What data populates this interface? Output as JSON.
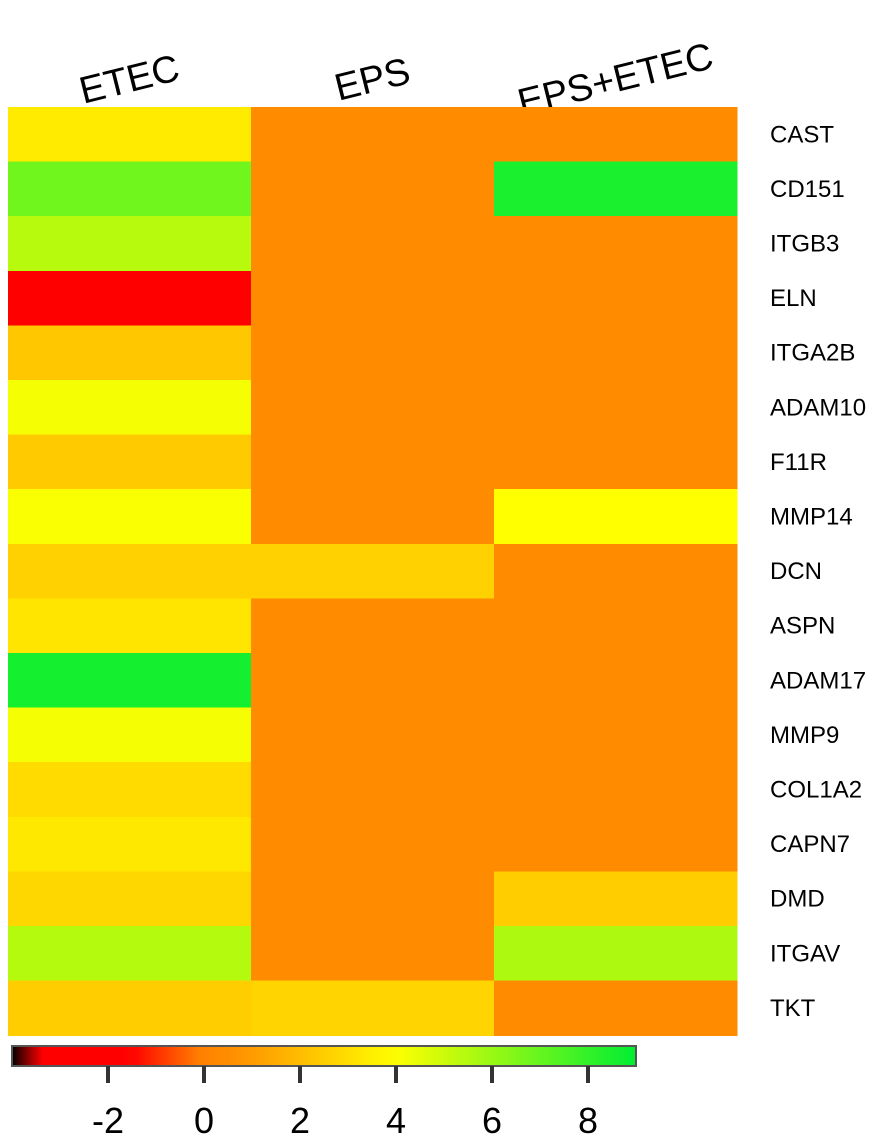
{
  "chart_data": {
    "type": "heatmap",
    "columns": [
      "ETEC",
      "EPS",
      "EPS+ETEC"
    ],
    "rows": [
      "CAST",
      "CD151",
      "ITGB3",
      "ELN",
      "ITGA2B",
      "ADAM10",
      "F11R",
      "MMP14",
      "DCN",
      "ASPN",
      "ADAM17",
      "MMP9",
      "COL1A2",
      "CAPN7",
      "DMD",
      "ITGAV",
      "TKT"
    ],
    "values": [
      [
        3.4,
        0.5,
        0.5
      ],
      [
        6.8,
        0.5,
        8.5
      ],
      [
        5.4,
        0.5,
        0.5
      ],
      [
        -1.6,
        0.5,
        0.5
      ],
      [
        2.3,
        0.5,
        0.5
      ],
      [
        4.2,
        0.5,
        0.5
      ],
      [
        2.4,
        0.5,
        0.5
      ],
      [
        4.1,
        0.5,
        4.0
      ],
      [
        2.6,
        2.6,
        0.5
      ],
      [
        3.2,
        0.5,
        0.5
      ],
      [
        8.6,
        0.5,
        0.5
      ],
      [
        4.2,
        0.5,
        0.5
      ],
      [
        2.9,
        0.5,
        0.5
      ],
      [
        3.3,
        0.5,
        0.5
      ],
      [
        2.8,
        0.5,
        2.5
      ],
      [
        5.5,
        0.5,
        5.6
      ],
      [
        2.5,
        2.7,
        0.5
      ]
    ],
    "colorbar": {
      "ticks": [
        -2,
        0,
        2,
        4,
        6,
        8
      ],
      "range": [
        -4,
        9
      ],
      "colors": {
        "black": "#000000",
        "red": "#ff0000",
        "orange": "#ff8800",
        "yellow": "#ffff00",
        "green": "#00ee33"
      }
    }
  }
}
